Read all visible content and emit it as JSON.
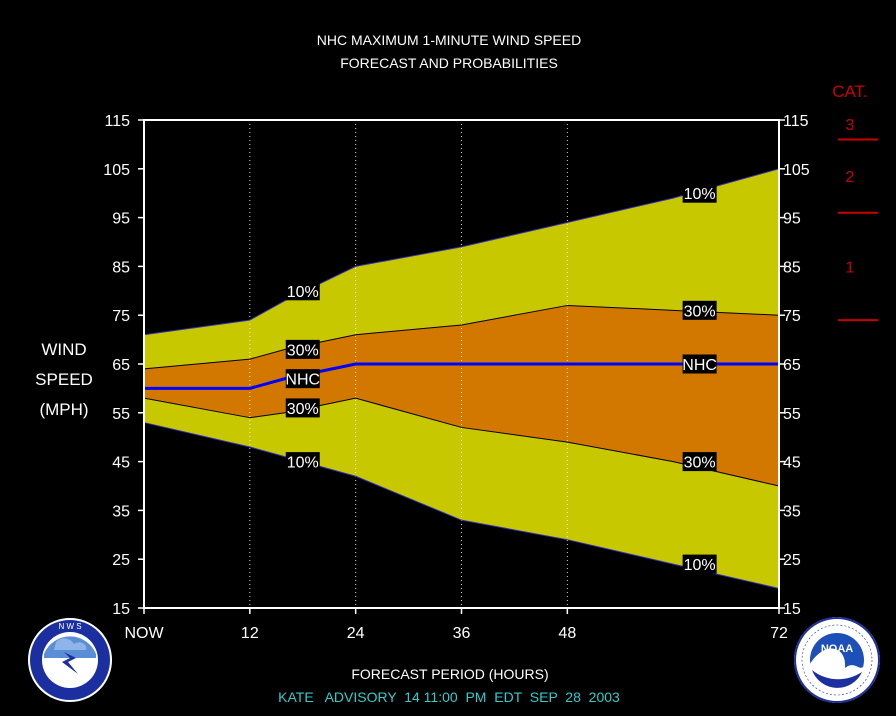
{
  "title_line1": "NHC MAXIMUM 1-MINUTE WIND SPEED",
  "title_line2": "FORECAST AND PROBABILITIES",
  "ylabel_lines": [
    "WIND",
    "SPEED",
    "(MPH)"
  ],
  "xlabel": "FORECAST PERIOD (HOURS)",
  "advisory": "KATE   ADVISORY  14 11:00  PM  EDT  SEP  28  2003",
  "category_scale": {
    "title": "CAT.",
    "categories": [
      {
        "label": "3",
        "threshold": 111
      },
      {
        "label": "2",
        "threshold": 96
      },
      {
        "label": "1",
        "threshold": 74
      }
    ],
    "color": "#cc0000"
  },
  "logos": [
    "National Weather Service logo",
    "NOAA logo"
  ],
  "colors": {
    "outer_band": "#c8c800",
    "inner_band": "#d27800",
    "forecast_line": "#0000ff",
    "frame": "#ffffff"
  },
  "chart_data": {
    "type": "area",
    "x": [
      0,
      12,
      16,
      24,
      36,
      48,
      60,
      72
    ],
    "xticks": [
      0,
      12,
      24,
      36,
      48,
      72
    ],
    "xtick_labels": [
      "NOW",
      "12",
      "24",
      "36",
      "48",
      "72"
    ],
    "xlim": [
      0,
      72
    ],
    "ylim": [
      15,
      115
    ],
    "yticks": [
      15,
      25,
      35,
      45,
      55,
      65,
      75,
      85,
      95,
      105,
      115
    ],
    "grid_x": [
      12,
      24,
      36,
      48
    ],
    "series": [
      {
        "name": "10%",
        "values": [
          71,
          74,
          78,
          85,
          89,
          94,
          99,
          105
        ]
      },
      {
        "name": "30%",
        "values": [
          64,
          66,
          68,
          71,
          73,
          77,
          76,
          75
        ]
      },
      {
        "name": "NHC",
        "values": [
          60,
          60,
          62,
          65,
          65,
          65,
          65,
          65
        ]
      },
      {
        "name": "30%",
        "values": [
          58,
          54,
          55,
          58,
          52,
          49,
          45,
          40
        ]
      },
      {
        "name": "10%",
        "values": [
          53,
          48,
          46,
          42,
          33,
          29,
          24,
          19
        ]
      }
    ],
    "annotations": [
      {
        "text": "10%",
        "x": 18,
        "y": 80
      },
      {
        "text": "30%",
        "x": 18,
        "y": 68
      },
      {
        "text": "NHC",
        "x": 18,
        "y": 62
      },
      {
        "text": "30%",
        "x": 18,
        "y": 56
      },
      {
        "text": "10%",
        "x": 18,
        "y": 45
      },
      {
        "text": "10%",
        "x": 63,
        "y": 100
      },
      {
        "text": "30%",
        "x": 63,
        "y": 76
      },
      {
        "text": "NHC",
        "x": 63,
        "y": 65
      },
      {
        "text": "30%",
        "x": 63,
        "y": 45
      },
      {
        "text": "10%",
        "x": 63,
        "y": 24
      }
    ]
  }
}
